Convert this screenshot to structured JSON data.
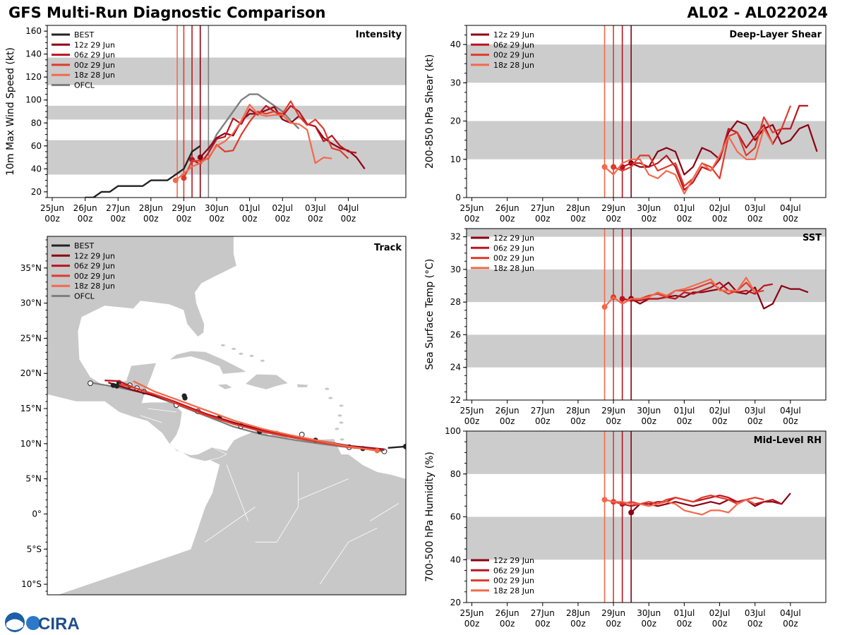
{
  "header": {
    "title": "GFS Multi-Run Diagnostic Comparison",
    "storm_id": "AL02 - AL022024"
  },
  "logo": {
    "text": "CIRA"
  },
  "colors": {
    "best": "#222222",
    "ofcl": "#7f7f7f",
    "run12z": "#8b0012",
    "run06z": "#bb1420",
    "run00z": "#e03a2c",
    "run18z": "#f4694c",
    "band": "#cccccc",
    "land": "#c8c8c8"
  },
  "time_ticks": [
    "25Jun\n00z",
    "26Jun\n00z",
    "27Jun\n00z",
    "28Jun\n00z",
    "29Jun\n00z",
    "30Jun\n00z",
    "01Jul\n00z",
    "02Jul\n00z",
    "03Jul\n00z",
    "04Jul\n00z"
  ],
  "chart_data": [
    {
      "id": "intensity",
      "type": "line",
      "title": "Intensity",
      "ylabel": "10m Max Wind Speed (kt)",
      "ylim": [
        15,
        165
      ],
      "yticks": [
        20,
        40,
        60,
        80,
        100,
        120,
        140,
        160
      ],
      "bands": [
        [
          35,
          65
        ],
        [
          83,
          95
        ],
        [
          113,
          137
        ]
      ],
      "init_lines": [
        {
          "t": 3.8,
          "run": "run18z"
        },
        {
          "t": 4.0,
          "run": "run00z"
        },
        {
          "t": 4.25,
          "run": "run06z"
        },
        {
          "t": 4.5,
          "run": "run12z"
        },
        {
          "t": 4.75,
          "run": "ofcl"
        }
      ],
      "legend": [
        {
          "label": "BEST",
          "key": "best"
        },
        {
          "label": "12z 29 Jun",
          "key": "run12z"
        },
        {
          "label": "06z 29 Jun",
          "key": "run06z"
        },
        {
          "label": "00z 29 Jun",
          "key": "run00z"
        },
        {
          "label": "18z 28 Jun",
          "key": "run18z"
        },
        {
          "label": "OFCL",
          "key": "ofcl"
        }
      ],
      "series": [
        {
          "key": "best",
          "start": 1.0,
          "values": [
            15,
            15,
            20,
            20,
            25,
            25,
            25,
            25,
            30,
            30,
            30,
            35,
            40,
            55,
            60
          ]
        },
        {
          "key": "ofcl",
          "start": 4.75,
          "values": [
            55,
            70,
            80,
            90,
            100,
            105,
            105,
            100,
            95,
            90,
            82,
            75
          ]
        },
        {
          "key": "run12z",
          "start": 4.5,
          "values": [
            50,
            58,
            67,
            71,
            69,
            82,
            88,
            88,
            91,
            94,
            83,
            80,
            86,
            79,
            77,
            67,
            62,
            58,
            56,
            50,
            40
          ]
        },
        {
          "key": "run06z",
          "start": 4.25,
          "values": [
            48,
            44,
            54,
            66,
            68,
            84,
            79,
            92,
            87,
            95,
            90,
            86,
            95,
            90,
            79,
            77,
            64,
            69,
            60,
            55,
            54
          ]
        },
        {
          "key": "run00z",
          "start": 4.0,
          "values": [
            32,
            47,
            47,
            49,
            61,
            55,
            56,
            70,
            81,
            90,
            88,
            90,
            88,
            99,
            86,
            78,
            83,
            75,
            58,
            56,
            49
          ]
        },
        {
          "key": "run18z",
          "start": 3.75,
          "values": [
            30,
            36,
            42,
            45,
            50,
            60,
            64,
            71,
            82,
            96,
            88,
            86,
            87,
            87,
            80,
            79,
            74,
            45,
            50,
            49
          ]
        }
      ]
    },
    {
      "id": "shear",
      "type": "line",
      "title": "Deep-Layer Shear",
      "ylabel": "200-850 hPa Shear (kt)",
      "ylim": [
        0,
        45
      ],
      "yticks": [
        0,
        10,
        20,
        30,
        40
      ],
      "bands": [
        [
          10,
          20
        ],
        [
          30,
          40
        ]
      ],
      "init_lines": [
        {
          "t": 3.75,
          "run": "run18z"
        },
        {
          "t": 4.0,
          "run": "run00z"
        },
        {
          "t": 4.25,
          "run": "run06z"
        },
        {
          "t": 4.5,
          "run": "run12z"
        }
      ],
      "legend": [
        {
          "label": "12z 29 Jun",
          "key": "run12z"
        },
        {
          "label": "06z 29 Jun",
          "key": "run06z"
        },
        {
          "label": "00z 29 Jun",
          "key": "run00z"
        },
        {
          "label": "18z 28 Jun",
          "key": "run18z"
        }
      ],
      "series": [
        {
          "key": "run12z",
          "start": 4.5,
          "values": [
            9,
            8,
            8,
            12,
            13,
            12,
            6,
            8,
            13,
            12,
            10,
            17,
            20,
            19,
            15,
            18,
            19,
            14,
            15,
            18,
            19,
            12
          ]
        },
        {
          "key": "run06z",
          "start": 4.25,
          "values": [
            8,
            9,
            9,
            8,
            9,
            11,
            8,
            2,
            4,
            8,
            7,
            10,
            18,
            17,
            13,
            16,
            19,
            14,
            18,
            18,
            24,
            24
          ]
        },
        {
          "key": "run00z",
          "start": 4.0,
          "values": [
            8,
            7,
            8,
            11,
            11,
            7,
            8,
            9,
            3,
            5,
            9,
            8,
            5,
            16,
            17,
            11,
            13,
            21,
            17,
            18,
            24
          ]
        },
        {
          "key": "run18z",
          "start": 3.75,
          "values": [
            8,
            6,
            9,
            10,
            10,
            6,
            5,
            7,
            6,
            1,
            5,
            9,
            7,
            11,
            16,
            12,
            10,
            10,
            18,
            14
          ]
        }
      ]
    },
    {
      "id": "sst",
      "type": "line",
      "title": "SST",
      "ylabel": "Sea Surface Temp (°C)",
      "ylim": [
        22,
        32.5
      ],
      "yticks": [
        22,
        24,
        26,
        28,
        30,
        32
      ],
      "bands": [
        [
          24,
          26
        ],
        [
          28,
          30
        ],
        [
          32,
          32.5
        ]
      ],
      "init_lines": [
        {
          "t": 3.75,
          "run": "run18z"
        },
        {
          "t": 4.0,
          "run": "run00z"
        },
        {
          "t": 4.25,
          "run": "run06z"
        },
        {
          "t": 4.5,
          "run": "run12z"
        }
      ],
      "legend": [
        {
          "label": "12z 29 Jun",
          "key": "run12z"
        },
        {
          "label": "06z 29 Jun",
          "key": "run06z"
        },
        {
          "label": "00z 29 Jun",
          "key": "run00z"
        },
        {
          "label": "18z 28 Jun",
          "key": "run18z"
        }
      ],
      "series": [
        {
          "key": "run12z",
          "start": 4.5,
          "values": [
            28.2,
            27.9,
            28.2,
            28.2,
            28.3,
            28.4,
            28.3,
            28.6,
            28.6,
            28.7,
            28.8,
            29.2,
            28.6,
            28.5,
            28.9,
            27.6,
            27.9,
            29.0,
            28.8,
            28.8,
            28.6
          ]
        },
        {
          "key": "run06z",
          "start": 4.25,
          "values": [
            28.2,
            28.1,
            28.1,
            28.2,
            28.2,
            28.3,
            28.2,
            28.6,
            28.5,
            28.7,
            28.9,
            29.2,
            28.7,
            28.6,
            28.7,
            28.5,
            29.0,
            29.1
          ]
        },
        {
          "key": "run00z",
          "start": 4.0,
          "values": [
            28.3,
            27.9,
            28.2,
            28.2,
            28.4,
            28.5,
            28.3,
            28.7,
            28.7,
            28.8,
            29.0,
            29.2,
            28.8,
            28.5,
            28.7,
            29.2,
            28.6,
            28.7
          ]
        },
        {
          "key": "run18z",
          "start": 3.75,
          "values": [
            27.7,
            28.3,
            27.9,
            28.2,
            28.2,
            28.3,
            28.6,
            28.4,
            28.7,
            28.8,
            29.0,
            29.2,
            29.4,
            28.7,
            28.7,
            28.7,
            29.5,
            28.6
          ]
        }
      ]
    },
    {
      "id": "rh",
      "type": "line",
      "title": "Mid-Level RH",
      "ylabel": "700-500 hPa Humidity (%)",
      "ylim": [
        20,
        100
      ],
      "yticks": [
        20,
        40,
        60,
        80,
        100
      ],
      "bands": [
        [
          40,
          60
        ],
        [
          80,
          100
        ]
      ],
      "init_lines": [
        {
          "t": 3.75,
          "run": "run18z"
        },
        {
          "t": 4.0,
          "run": "run00z"
        },
        {
          "t": 4.25,
          "run": "run06z"
        },
        {
          "t": 4.5,
          "run": "run12z"
        }
      ],
      "legend": [
        {
          "label": "12z 29 Jun",
          "key": "run12z"
        },
        {
          "label": "06z 29 Jun",
          "key": "run06z"
        },
        {
          "label": "00z 29 Jun",
          "key": "run00z"
        },
        {
          "label": "18z 28 Jun",
          "key": "run18z"
        }
      ],
      "series": [
        {
          "key": "run12z",
          "start": 4.5,
          "values": [
            62,
            66,
            66,
            65,
            66,
            67,
            66,
            65,
            66,
            67,
            66,
            68,
            67,
            68,
            65,
            67,
            67,
            66,
            71
          ]
        },
        {
          "key": "run06z",
          "start": 4.25,
          "values": [
            66,
            65,
            66,
            66,
            67,
            67,
            69,
            68,
            67,
            68,
            69,
            70,
            69,
            67,
            68,
            66,
            67,
            68,
            66
          ]
        },
        {
          "key": "run00z",
          "start": 4.0,
          "values": [
            67,
            66,
            67,
            66,
            67,
            66,
            68,
            69,
            68,
            67,
            69,
            70,
            69,
            68,
            66,
            68,
            69,
            68
          ]
        },
        {
          "key": "run18z",
          "start": 3.75,
          "values": [
            68,
            67,
            67,
            66,
            66,
            65,
            66,
            67,
            66,
            63,
            62,
            61,
            63,
            63,
            62,
            66,
            68,
            66
          ]
        }
      ]
    },
    {
      "id": "track",
      "type": "line",
      "title": "Track",
      "ylim": [
        -11.5,
        39.5
      ],
      "xlim": [
        -102,
        -52
      ],
      "lat_ticks": [
        "10°S",
        "5°S",
        "0°",
        "5°N",
        "10°N",
        "15°N",
        "20°N",
        "25°N",
        "30°N",
        "35°N"
      ],
      "lat_values": [
        -10,
        -5,
        0,
        5,
        10,
        15,
        20,
        25,
        30,
        35
      ],
      "legend": [
        {
          "label": "BEST",
          "key": "best"
        },
        {
          "label": "12z 29 Jun",
          "key": "run12z"
        },
        {
          "label": "06z 29 Jun",
          "key": "run06z"
        },
        {
          "label": "00z 29 Jun",
          "key": "run00z"
        },
        {
          "label": "18z 28 Jun",
          "key": "run18z"
        },
        {
          "label": "OFCL",
          "key": "ofcl"
        }
      ],
      "series": [
        {
          "key": "best",
          "points": [
            [
              -52,
              9.6
            ],
            [
              -54.5,
              9.4
            ]
          ]
        },
        {
          "key": "ofcl",
          "points": [
            [
              -55,
              8.9
            ],
            [
              -58,
              9.3
            ],
            [
              -61,
              9.6
            ],
            [
              -64,
              10.0
            ],
            [
              -68,
              10.6
            ],
            [
              -72,
              11.3
            ],
            [
              -76,
              12.4
            ],
            [
              -80,
              14.0
            ],
            [
              -84,
              15.6
            ],
            [
              -88,
              17.1
            ],
            [
              -92,
              18.0
            ],
            [
              -96,
              18.7
            ]
          ],
          "markers": [
            [
              -55,
              8.9
            ],
            [
              -59.9,
              9.5
            ],
            [
              -66.5,
              11.3
            ],
            [
              -75,
              12.5
            ],
            [
              -81,
              14.6
            ],
            [
              -84,
              15.5
            ],
            [
              -88.5,
              17.4
            ],
            [
              -89.5,
              17.9
            ],
            [
              -90.5,
              18.3
            ],
            [
              -96,
              18.6
            ]
          ]
        },
        {
          "key": "run12z",
          "points": [
            [
              -55,
              9.2
            ],
            [
              -60,
              9.7
            ],
            [
              -64,
              10.4
            ],
            [
              -68,
              11.0
            ],
            [
              -72,
              11.9
            ],
            [
              -76,
              13.0
            ],
            [
              -80,
              14.3
            ],
            [
              -84,
              15.8
            ],
            [
              -87,
              16.8
            ],
            [
              -90,
              17.6
            ],
            [
              -92.5,
              18.4
            ],
            [
              -93.5,
              18.7
            ]
          ],
          "markers": [
            [
              -58,
              9.3
            ],
            [
              -64.6,
              10.5
            ],
            [
              -72.4,
              11.7
            ],
            [
              -78,
              13.7
            ],
            [
              -82.8,
              16.5
            ],
            [
              -82.9,
              16.8
            ],
            [
              -92,
              18.7
            ],
            [
              -92.8,
              18.3
            ],
            [
              -92.3,
              18.2
            ]
          ]
        },
        {
          "key": "run06z",
          "points": [
            [
              -55,
              9.1
            ],
            [
              -60,
              9.6
            ],
            [
              -64,
              10.3
            ],
            [
              -68,
              11.0
            ],
            [
              -72,
              11.8
            ],
            [
              -76,
              12.8
            ],
            [
              -80,
              14.3
            ],
            [
              -84,
              15.9
            ],
            [
              -87,
              17.0
            ],
            [
              -90,
              18.0
            ],
            [
              -92,
              18.9
            ],
            [
              -94,
              19.0
            ]
          ]
        },
        {
          "key": "run00z",
          "points": [
            [
              -56,
              9.1
            ],
            [
              -60,
              9.5
            ],
            [
              -64,
              10.2
            ],
            [
              -68,
              10.9
            ],
            [
              -72,
              11.7
            ],
            [
              -76,
              12.8
            ],
            [
              -80,
              14.1
            ],
            [
              -84,
              15.7
            ],
            [
              -87,
              17.0
            ],
            [
              -90,
              18.0
            ],
            [
              -92,
              18.5
            ]
          ]
        },
        {
          "key": "run18z",
          "points": [
            [
              -56,
              9.0
            ],
            [
              -60,
              9.6
            ],
            [
              -64,
              10.4
            ],
            [
              -68,
              11.2
            ],
            [
              -72,
              12.1
            ],
            [
              -76,
              13.3
            ],
            [
              -80,
              14.8
            ],
            [
              -84,
              16.3
            ],
            [
              -87,
              17.4
            ],
            [
              -89,
              18.4
            ],
            [
              -90,
              18.9
            ]
          ],
          "markers": [
            [
              -56,
              9.0
            ]
          ]
        }
      ]
    }
  ]
}
